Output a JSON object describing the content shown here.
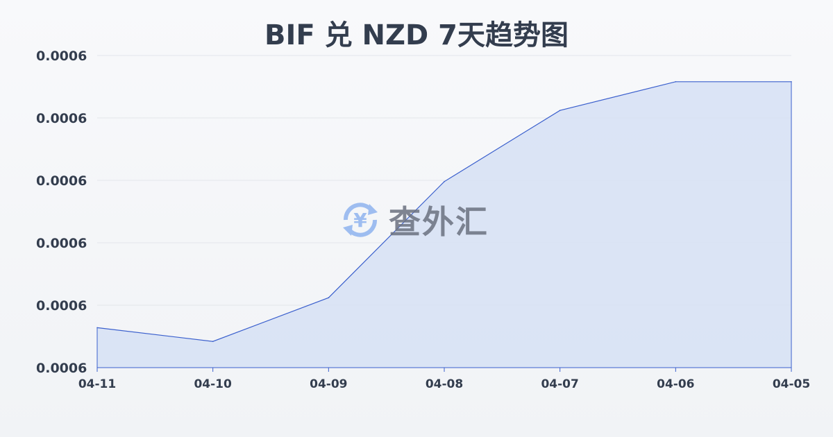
{
  "chart_data": {
    "type": "area",
    "title": "BIF 兑 NZD 7天趋势图",
    "categories": [
      "04-11",
      "04-10",
      "04-09",
      "04-08",
      "04-07",
      "04-06",
      "04-05"
    ],
    "values": [
      0.0005932,
      0.0005921,
      0.0005956,
      0.0006049,
      0.0006106,
      0.0006129,
      0.0006129
    ],
    "yticks": [
      0.00059,
      0.000595,
      0.0006,
      0.000605,
      0.00061,
      0.000615
    ],
    "ytick_labels": [
      "0.0006",
      "0.0006",
      "0.0006",
      "0.0006",
      "0.0006",
      "0.0006"
    ],
    "ylim": [
      0.00059,
      0.000615
    ],
    "grid": true,
    "line_color": "#3a5fcd",
    "fill_color": "#d6e1f5"
  },
  "watermark": {
    "text": "查外汇",
    "icon": "yen-exchange-icon",
    "icon_color": "#8fb4ef"
  }
}
